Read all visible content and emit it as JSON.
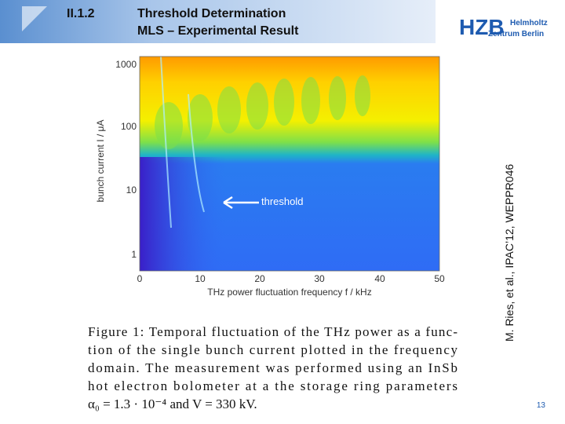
{
  "header": {
    "section": "II.1.2",
    "title_lines": [
      "Threshold Determination",
      "MLS – Experimental Result"
    ]
  },
  "logo": {
    "name": "HZB",
    "lines": [
      "Helmholtz",
      "Zentrum Berlin"
    ]
  },
  "citation": "M. Ries, et al., IPAC’12, WEPPR046",
  "figure": {
    "ylabel": "bunch current I / μA",
    "xlabel": "THz power fluctuation frequency f / kHz",
    "yticks": [
      1000,
      100,
      10,
      1
    ],
    "xticks": [
      0,
      10,
      20,
      30,
      40,
      50
    ],
    "annotation": "threshold",
    "caption_lines": [
      "Figure 1: Temporal fluctuation of the THz power as a func-",
      "tion of the single bunch current plotted in the frequency",
      "domain. The measurement was performed using an InSb",
      "hot electron bolometer at a the storage ring parameters",
      "α₀ = 1.3 · 10⁻⁴ and V = 330 kV."
    ]
  },
  "page_number": "13"
}
